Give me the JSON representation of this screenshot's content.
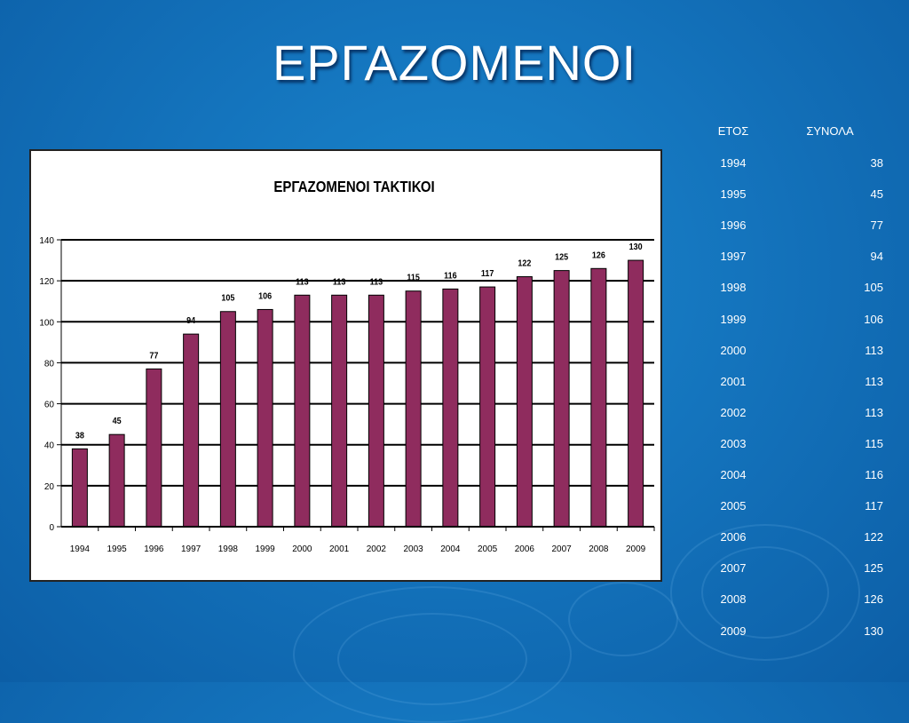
{
  "slide": {
    "title": "ΕΡΓΑΖΟΜΕΝΟΙ"
  },
  "table": {
    "headers": {
      "year": "ΕΤΟΣ",
      "total": "ΣΥΝΟΛΑ"
    },
    "rows": [
      {
        "year": "1994",
        "total": "38"
      },
      {
        "year": "1995",
        "total": "45"
      },
      {
        "year": "1996",
        "total": "77"
      },
      {
        "year": "1997",
        "total": "94"
      },
      {
        "year": "1998",
        "total": "105"
      },
      {
        "year": "1999",
        "total": "106"
      },
      {
        "year": "2000",
        "total": "113"
      },
      {
        "year": "2001",
        "total": "113"
      },
      {
        "year": "2002",
        "total": "113"
      },
      {
        "year": "2003",
        "total": "115"
      },
      {
        "year": "2004",
        "total": "116"
      },
      {
        "year": "2005",
        "total": "117"
      },
      {
        "year": "2006",
        "total": "122"
      },
      {
        "year": "2007",
        "total": "125"
      },
      {
        "year": "2008",
        "total": "126"
      },
      {
        "year": "2009",
        "total": "130"
      }
    ]
  },
  "chart_data": {
    "type": "bar",
    "title": "ΕΡΓΑΖΟΜΕΝΟΙ ΤΑΚΤΙΚΟΙ",
    "xlabel": "",
    "ylabel": "",
    "categories": [
      "1994",
      "1995",
      "1996",
      "1997",
      "1998",
      "1999",
      "2000",
      "2001",
      "2002",
      "2003",
      "2004",
      "2005",
      "2006",
      "2007",
      "2008",
      "2009"
    ],
    "values": [
      38,
      45,
      77,
      94,
      105,
      106,
      113,
      113,
      113,
      115,
      116,
      117,
      122,
      125,
      126,
      130
    ],
    "ylim": [
      0,
      140
    ],
    "yticks": [
      0,
      20,
      40,
      60,
      80,
      100,
      120,
      140
    ],
    "grid": true,
    "data_labels": true,
    "bar_color": "#8f2c5e"
  }
}
